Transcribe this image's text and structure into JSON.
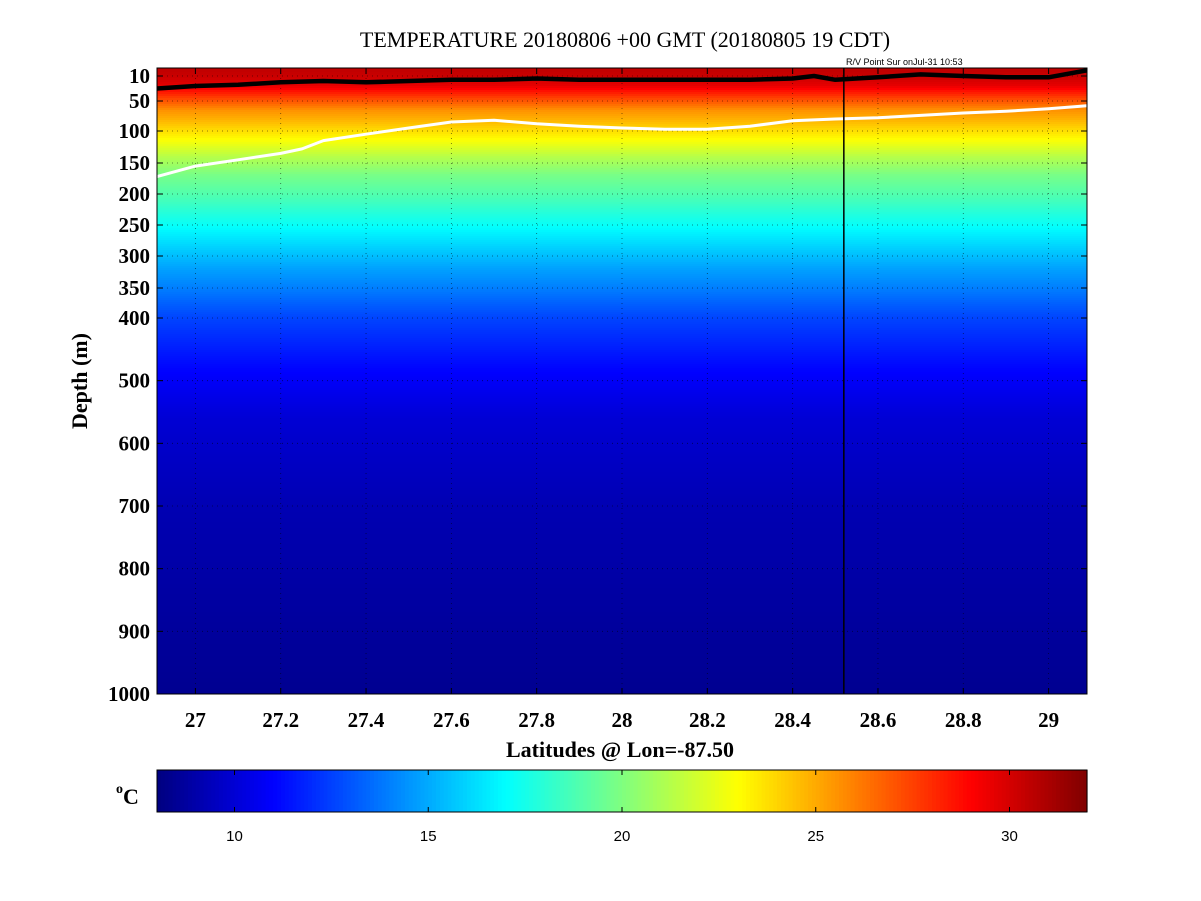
{
  "chart_data": {
    "type": "heatmap",
    "title": "TEMPERATURE 20180806 +00 GMT (20180805 19 CDT)",
    "annotation": "R/V Point Sur onJul-31 10:53",
    "xlabel": "Latitudes @ Lon=-87.50",
    "ylabel": "Depth (m)",
    "xlim": [
      26.91,
      29.09
    ],
    "ylim": [
      1000,
      5
    ],
    "x_ticks": [
      27,
      27.2,
      27.4,
      27.6,
      27.8,
      28,
      28.2,
      28.4,
      28.6,
      28.8,
      29
    ],
    "x_tick_labels": [
      "27",
      "27.2",
      "27.4",
      "27.6",
      "27.8",
      "28",
      "28.2",
      "28.4",
      "28.6",
      "28.8",
      "29"
    ],
    "y_ticks": [
      10,
      50,
      100,
      150,
      200,
      250,
      300,
      350,
      400,
      500,
      600,
      700,
      800,
      900,
      1000
    ],
    "y_tick_labels": [
      "10",
      "50",
      "100",
      "150",
      "200",
      "250",
      "300",
      "350",
      "400",
      "500",
      "600",
      "700",
      "800",
      "900",
      "1000"
    ],
    "y_scale": "piecewise: 0-400 m stretched, 400-1000 m linear",
    "grid": true,
    "colormap": "jet",
    "colorbar": {
      "unit_base": "C",
      "unit_sup": "o",
      "range": [
        8,
        32
      ],
      "ticks": [
        10,
        15,
        20,
        25,
        30
      ],
      "tick_labels": [
        "10",
        "15",
        "20",
        "25",
        "30"
      ]
    },
    "vertical_line_lat": 28.52,
    "contours": [
      {
        "color": "#000000",
        "lat": [
          26.91,
          27.0,
          27.1,
          27.2,
          27.3,
          27.4,
          27.5,
          27.6,
          27.7,
          27.8,
          27.9,
          28.0,
          28.1,
          28.2,
          28.3,
          28.4,
          28.45,
          28.5,
          28.6,
          28.7,
          28.8,
          28.9,
          29.0,
          29.09
        ],
        "depth": [
          30,
          26,
          24,
          20,
          18,
          20,
          18,
          16,
          16,
          14,
          16,
          16,
          16,
          16,
          16,
          14,
          10,
          16,
          12,
          8,
          10,
          12,
          12,
          3
        ]
      },
      {
        "color": "#ffffff",
        "lat": [
          26.91,
          27.0,
          27.1,
          27.2,
          27.25,
          27.3,
          27.4,
          27.5,
          27.6,
          27.7,
          27.8,
          27.9,
          28.0,
          28.1,
          28.2,
          28.3,
          28.4,
          28.5,
          28.6,
          28.7,
          28.8,
          28.9,
          29.0,
          29.09
        ],
        "depth": [
          172,
          155,
          145,
          135,
          128,
          115,
          105,
          95,
          85,
          82,
          88,
          92,
          95,
          97,
          97,
          92,
          83,
          80,
          78,
          74,
          70,
          67,
          63,
          58
        ]
      }
    ],
    "profile": {
      "depth": [
        0,
        10,
        25,
        45,
        65,
        85,
        110,
        140,
        170,
        210,
        260,
        320,
        400,
        480,
        560,
        700,
        1000
      ],
      "temp": [
        30.5,
        30.3,
        29.6,
        27.5,
        25.6,
        24.6,
        23.2,
        21.3,
        19.8,
        18.6,
        16.8,
        14.8,
        12.6,
        11.1,
        10.0,
        9.2,
        8.4
      ]
    }
  }
}
